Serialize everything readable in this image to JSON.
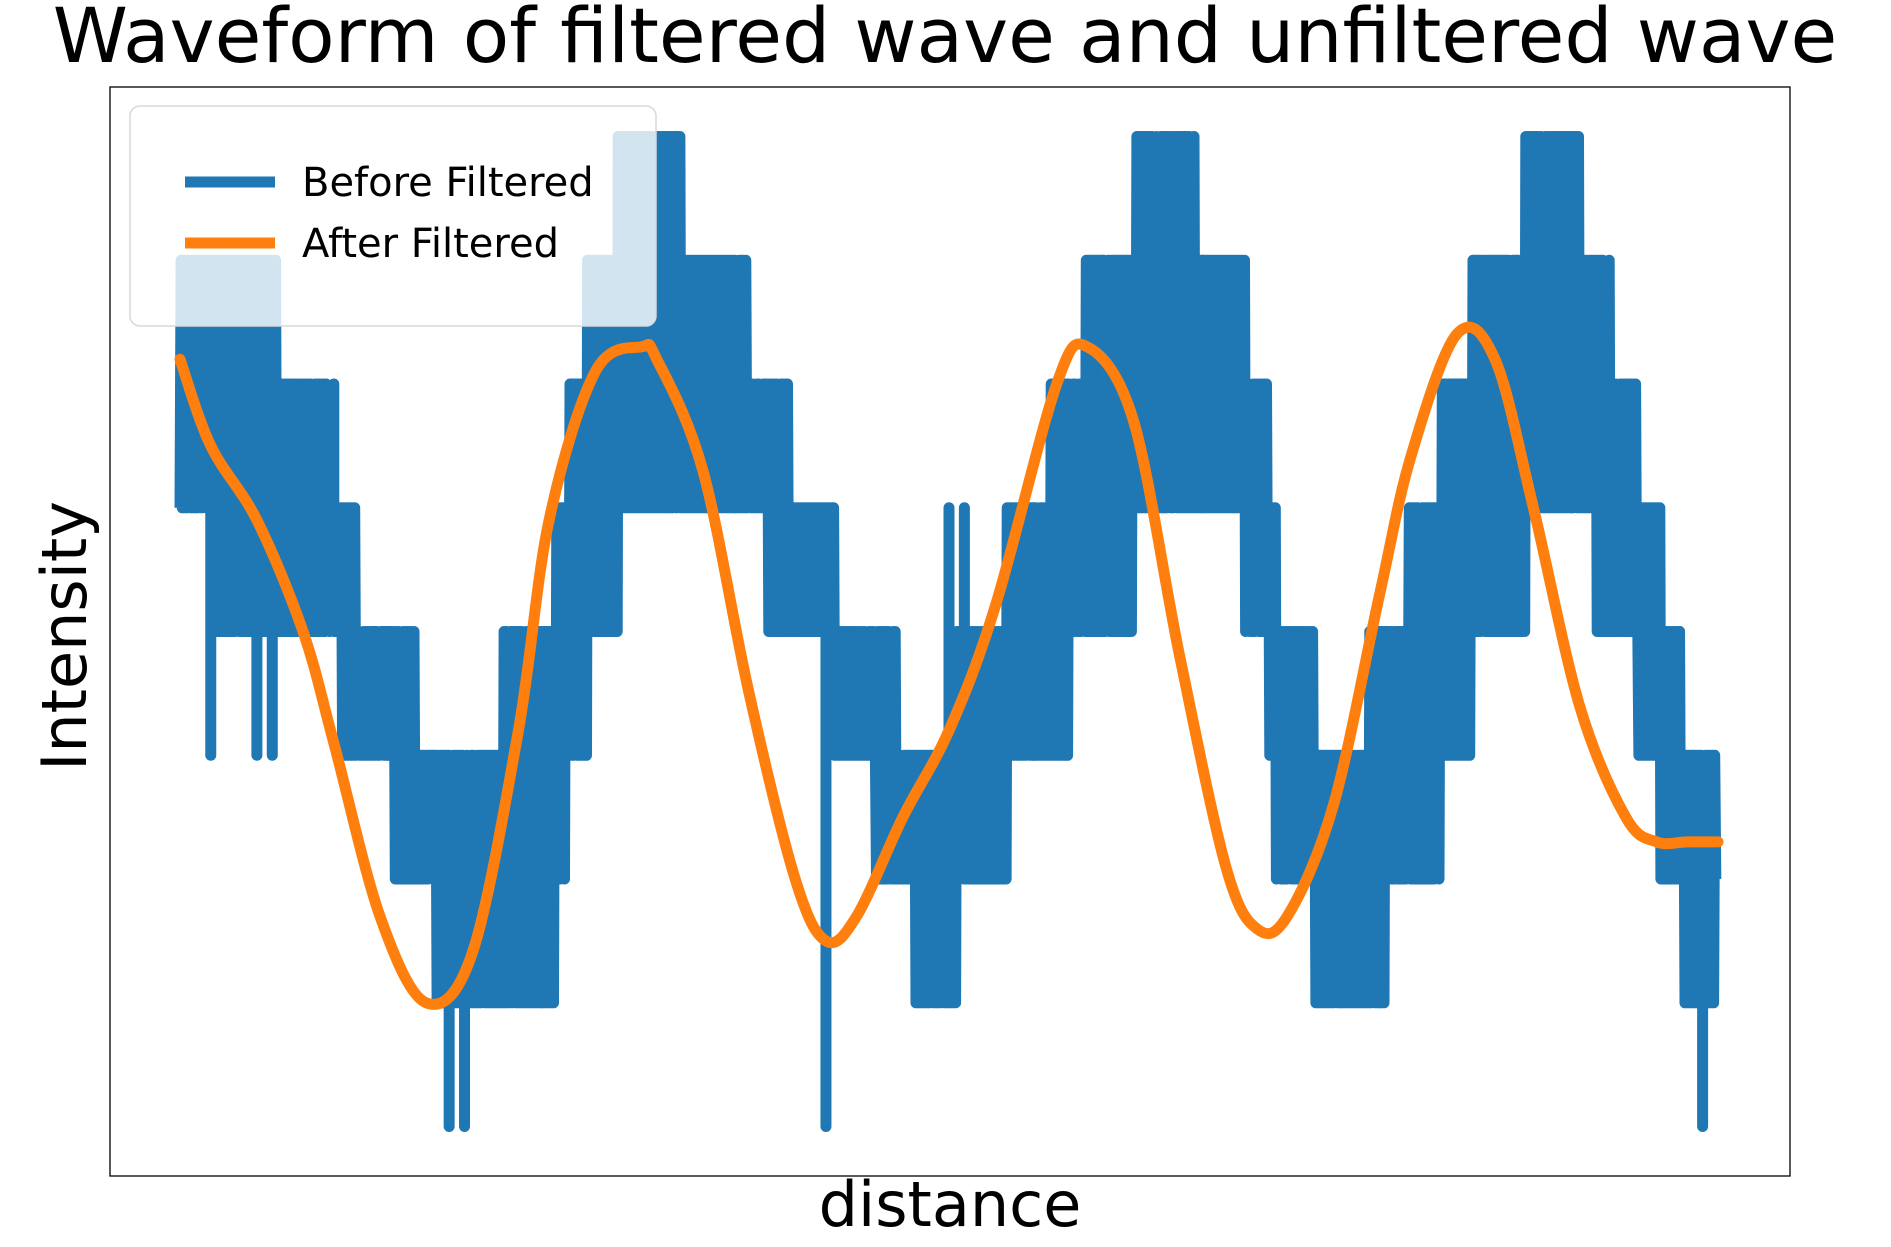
{
  "chart_data": {
    "type": "line",
    "title": "Waveform of filtered wave and unfiltered wave",
    "xlabel": "distance",
    "ylabel": "Intensity",
    "xlim": [
      0,
      1000
    ],
    "ylim": [
      -4.4,
      4.4
    ],
    "grid": false,
    "legend": "top-left",
    "series": [
      {
        "name": "Before Filtered",
        "color": "#1f77b4",
        "style": "quantized-noisy",
        "x": [
          0,
          40,
          85,
          125,
          180,
          240,
          255,
          295,
          355,
          410,
          440,
          490,
          520,
          555,
          600,
          640,
          680,
          705,
          715,
          760,
          810,
          850,
          900,
          940,
          985,
          1000
        ],
        "lo": [
          1,
          0,
          0,
          -1,
          -3,
          -3,
          -1,
          1,
          1,
          0,
          -1,
          -3,
          -2,
          -1,
          0,
          1,
          1,
          0,
          -2,
          -3,
          -2,
          0,
          1,
          0,
          -3,
          -3
        ],
        "hi": [
          3,
          3,
          2,
          0,
          -1,
          0,
          2,
          4,
          3,
          1,
          0,
          -1,
          0,
          1,
          3,
          4,
          3,
          2,
          0,
          -1,
          1,
          3,
          4,
          2,
          -1,
          -1
        ],
        "spikes": [
          {
            "x": 20,
            "y": -1
          },
          {
            "x": 50,
            "y": -1
          },
          {
            "x": 60,
            "y": -1
          },
          {
            "x": 100,
            "y": 2
          },
          {
            "x": 135,
            "y": 0
          },
          {
            "x": 175,
            "y": -4
          },
          {
            "x": 185,
            "y": -4
          },
          {
            "x": 235,
            "y": 0
          },
          {
            "x": 285,
            "y": 4
          },
          {
            "x": 320,
            "y": 4
          },
          {
            "x": 360,
            "y": 2
          },
          {
            "x": 395,
            "y": 1
          },
          {
            "x": 420,
            "y": -4
          },
          {
            "x": 500,
            "y": 1
          },
          {
            "x": 510,
            "y": 1
          },
          {
            "x": 555,
            "y": 1
          },
          {
            "x": 600,
            "y": 3
          },
          {
            "x": 640,
            "y": 4
          },
          {
            "x": 665,
            "y": 3
          },
          {
            "x": 685,
            "y": 1
          },
          {
            "x": 755,
            "y": -2
          },
          {
            "x": 780,
            "y": -1
          },
          {
            "x": 870,
            "y": 3
          },
          {
            "x": 905,
            "y": 3
          },
          {
            "x": 940,
            "y": 2
          },
          {
            "x": 975,
            "y": 0
          },
          {
            "x": 990,
            "y": -4
          }
        ]
      },
      {
        "name": "After Filtered",
        "color": "#ff7f0e",
        "style": "smooth",
        "x": [
          0,
          20,
          50,
          80,
          100,
          130,
          160,
          190,
          220,
          240,
          270,
          300,
          310,
          340,
          370,
          400,
          420,
          440,
          470,
          500,
          530,
          570,
          590,
          620,
          650,
          680,
          700,
          720,
          750,
          780,
          800,
          830,
          855,
          880,
          910,
          940,
          960,
          980,
          1000
        ],
        "y": [
          2.2,
          1.5,
          0.9,
          0.0,
          -0.9,
          -2.3,
          -3.0,
          -2.6,
          -0.8,
          0.9,
          2.1,
          2.3,
          2.2,
          1.3,
          -0.5,
          -2.0,
          -2.5,
          -2.3,
          -1.5,
          -0.8,
          0.2,
          2.0,
          2.3,
          1.7,
          -0.2,
          -1.9,
          -2.4,
          -2.3,
          -1.4,
          0.3,
          1.4,
          2.4,
          2.2,
          1.0,
          -0.6,
          -1.5,
          -1.7,
          -1.7,
          -1.7
        ]
      }
    ]
  }
}
